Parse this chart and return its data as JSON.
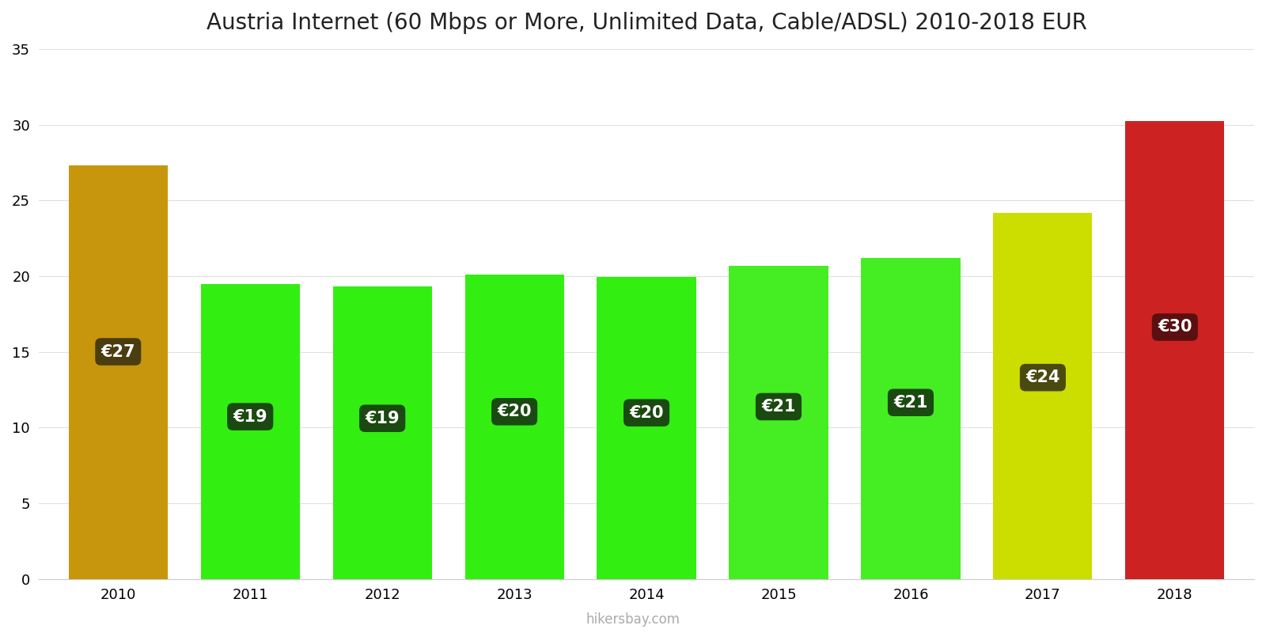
{
  "years": [
    2010,
    2011,
    2012,
    2013,
    2014,
    2015,
    2016,
    2017,
    2018
  ],
  "values": [
    27.3,
    19.5,
    19.3,
    20.1,
    19.97,
    20.7,
    21.2,
    24.2,
    30.25
  ],
  "labels": [
    "€27",
    "€19",
    "€19",
    "€20",
    "€20",
    "€21",
    "€21",
    "€24",
    "€30"
  ],
  "bar_colors": [
    "#C8960C",
    "#33EE11",
    "#33EE11",
    "#33EE11",
    "#33EE11",
    "#44EE22",
    "#44EE22",
    "#CCDD00",
    "#CC2222"
  ],
  "label_bg_colors": [
    "#4a3d10",
    "#1a4a10",
    "#1a4a10",
    "#1a4a10",
    "#1a4a10",
    "#1a4a10",
    "#1a4a10",
    "#4a4a10",
    "#5a1010"
  ],
  "title": "Austria Internet (60 Mbps or More, Unlimited Data, Cable/ADSL) 2010-2018 EUR",
  "ylim": [
    0,
    35
  ],
  "yticks": [
    0,
    5,
    10,
    15,
    20,
    25,
    30,
    35
  ],
  "watermark": "hikersbay.com",
  "title_fontsize": 20,
  "background_color": "#ffffff"
}
